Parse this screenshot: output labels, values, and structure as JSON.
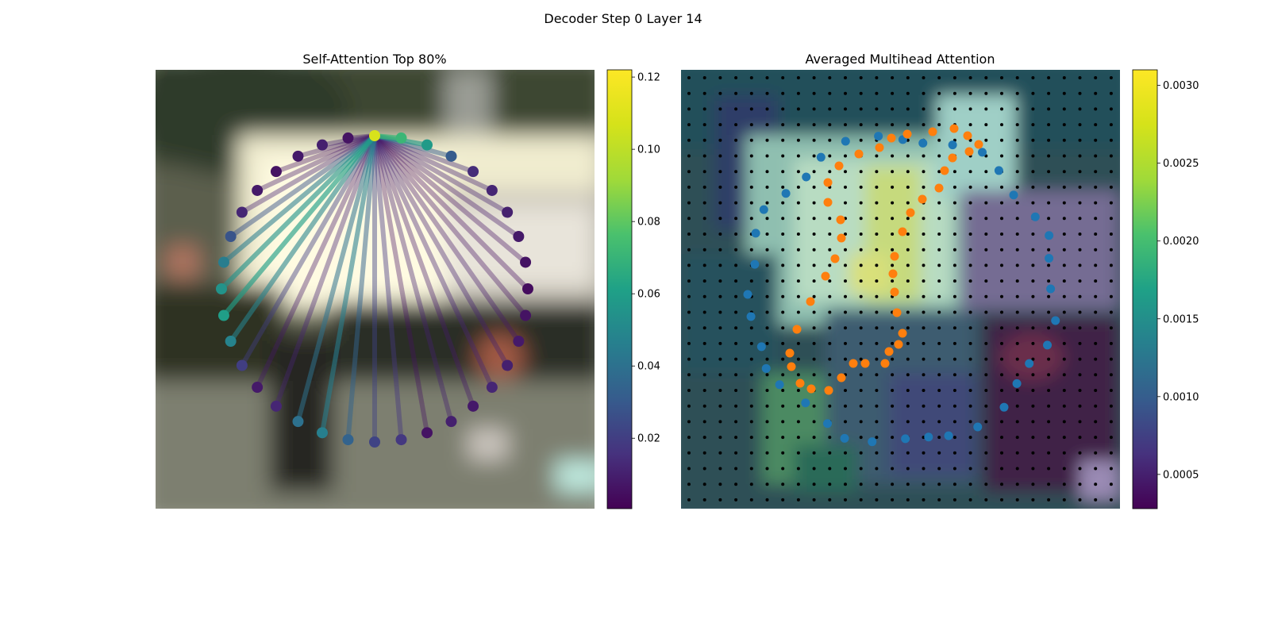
{
  "figure": {
    "suptitle": "Decoder Step 0 Layer 14"
  },
  "chart_data": [
    {
      "type": "scatter",
      "title": "Self-Attention Top 80%",
      "description_of_marks": "ring of query points; lines from the highlighted query point to the points it attends to, colored by attention weight",
      "ring_points": 36,
      "source_point_index": 9,
      "attention_weights": [
        0.055,
        0.045,
        0.028,
        0.012,
        0.008,
        0.006,
        0.008,
        0.01,
        0.006,
        0.108,
        0.071,
        0.058,
        0.031,
        0.014,
        0.012,
        0.01,
        0.008,
        0.006,
        0.004,
        0.006,
        0.008,
        0.01,
        0.012,
        0.008,
        0.01,
        0.006,
        0.018,
        0.022,
        0.034,
        0.046,
        0.04,
        0.012,
        0.008,
        0.02,
        0.048,
        0.06
      ],
      "colorbar": {
        "colormap": "viridis",
        "min": 0.0005,
        "max": 0.122,
        "ticks": [
          "0.02",
          "0.04",
          "0.06",
          "0.08",
          "0.10",
          "0.12"
        ],
        "tick_values": [
          0.02,
          0.04,
          0.06,
          0.08,
          0.1,
          0.12
        ]
      }
    },
    {
      "type": "heatmap",
      "title": "Averaged Multihead Attention",
      "grid": {
        "cols": 28,
        "rows": 28
      },
      "series": [
        {
          "color": "#1f77b4"
        },
        {
          "color": "#ff7f0e"
        }
      ],
      "colorbar": {
        "colormap": "viridis",
        "min": 0.00028,
        "max": 0.0031,
        "ticks": [
          "0.0005",
          "0.0010",
          "0.0015",
          "0.0020",
          "0.0025",
          "0.0030"
        ],
        "tick_values": [
          0.0005,
          0.001,
          0.0015,
          0.002,
          0.0025,
          0.003
        ]
      }
    }
  ]
}
